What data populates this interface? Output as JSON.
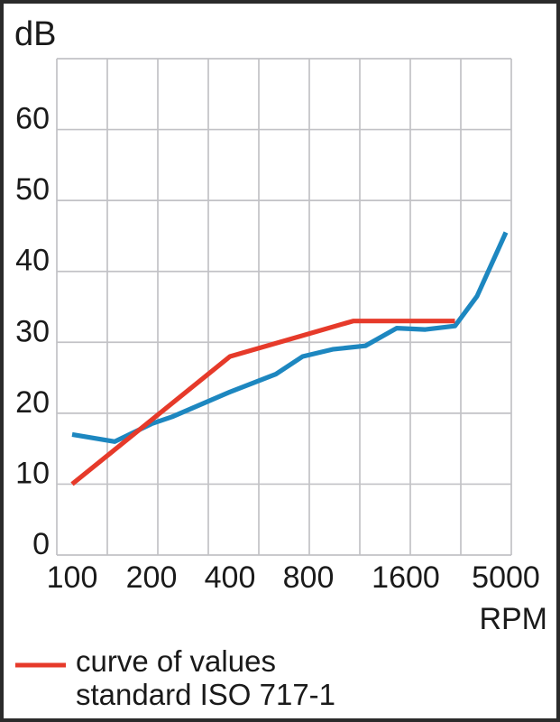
{
  "chart_data": {
    "type": "line",
    "title": "",
    "x_axis": {
      "label": "RPM",
      "scale": "log",
      "ticks": [
        100,
        200,
        400,
        800,
        1600,
        5000
      ]
    },
    "y_axis": {
      "label": "dB",
      "ticks": [
        0,
        10,
        20,
        30,
        40,
        50,
        60
      ],
      "range": [
        0,
        70
      ]
    },
    "grid": {
      "visible": true,
      "columns": 9,
      "rows": 7
    },
    "series": [
      {
        "name": "measured-values-curve",
        "color": "#1d87c0",
        "points": [
          [
            100,
            17
          ],
          [
            145,
            16
          ],
          [
            200,
            18.5
          ],
          [
            240,
            19.5
          ],
          [
            400,
            23
          ],
          [
            600,
            25.5
          ],
          [
            760,
            28
          ],
          [
            950,
            29
          ],
          [
            1200,
            29.5
          ],
          [
            1500,
            32
          ],
          [
            2000,
            31.8
          ],
          [
            2800,
            32.3
          ],
          [
            3600,
            36.5
          ],
          [
            5000,
            45.5
          ]
        ]
      },
      {
        "name": "iso-717-1-reference-curve",
        "color": "#e63a2a",
        "points": [
          [
            100,
            10
          ],
          [
            400,
            28
          ],
          [
            1100,
            33
          ],
          [
            2800,
            33
          ]
        ]
      }
    ],
    "legend": {
      "position": "bottom-left",
      "entries": [
        {
          "swatch_color": "#e63a2a",
          "label_lines": [
            "curve of values",
            "standard ISO 717-1"
          ]
        }
      ]
    }
  },
  "colors": {
    "red": "#e63a2a",
    "blue": "#1d87c0",
    "grid": "#c2c2c6",
    "text": "#1a1a1a",
    "frame": "#2b2b2b"
  }
}
